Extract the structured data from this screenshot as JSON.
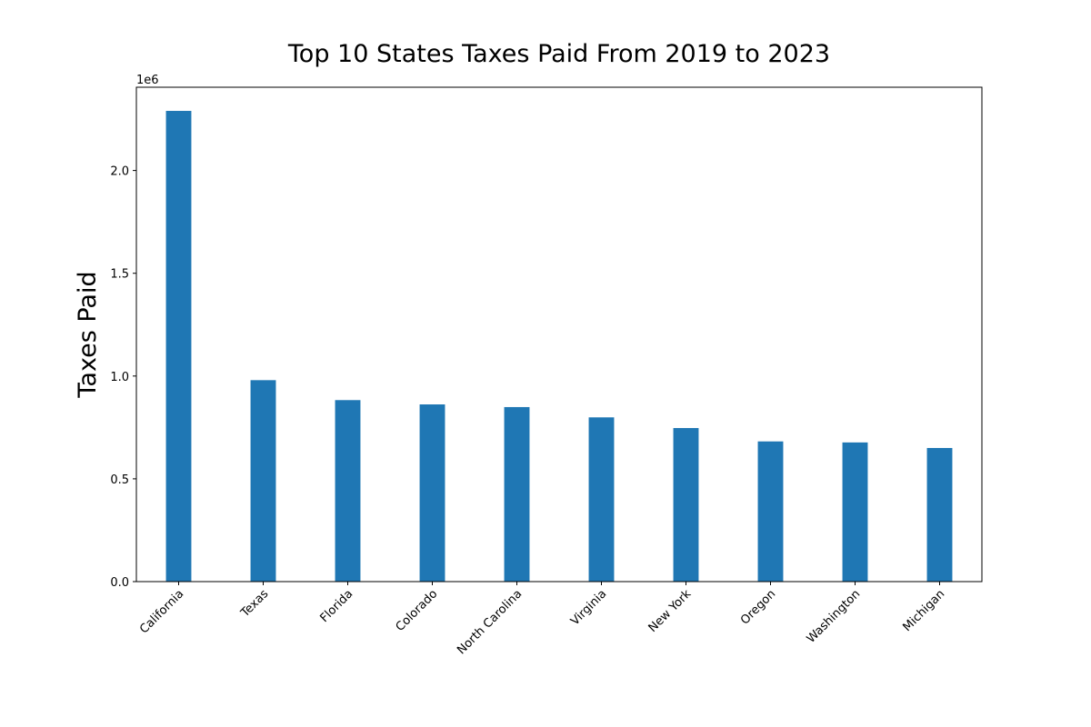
{
  "chart_data": {
    "type": "bar",
    "title": "Top 10 States Taxes Paid From 2019 to 2023",
    "xlabel": "",
    "ylabel": "Taxes Paid",
    "y_offset_label": "1e6",
    "categories": [
      "California",
      "Texas",
      "Florida",
      "Colorado",
      "North Carolina",
      "Virginia",
      "New York",
      "Oregon",
      "Washington",
      "Michigan"
    ],
    "values": [
      2290000,
      980000,
      883000,
      862000,
      849000,
      799000,
      747000,
      682000,
      677000,
      650000
    ],
    "ylim": [
      0,
      2405000
    ],
    "yticks": [
      0,
      500000,
      1000000,
      1500000,
      2000000
    ],
    "ytick_labels": [
      "0.0",
      "0.5",
      "1.0",
      "1.5",
      "2.0"
    ],
    "bar_color": "#1f77b4",
    "grid": false,
    "legend": "none"
  }
}
